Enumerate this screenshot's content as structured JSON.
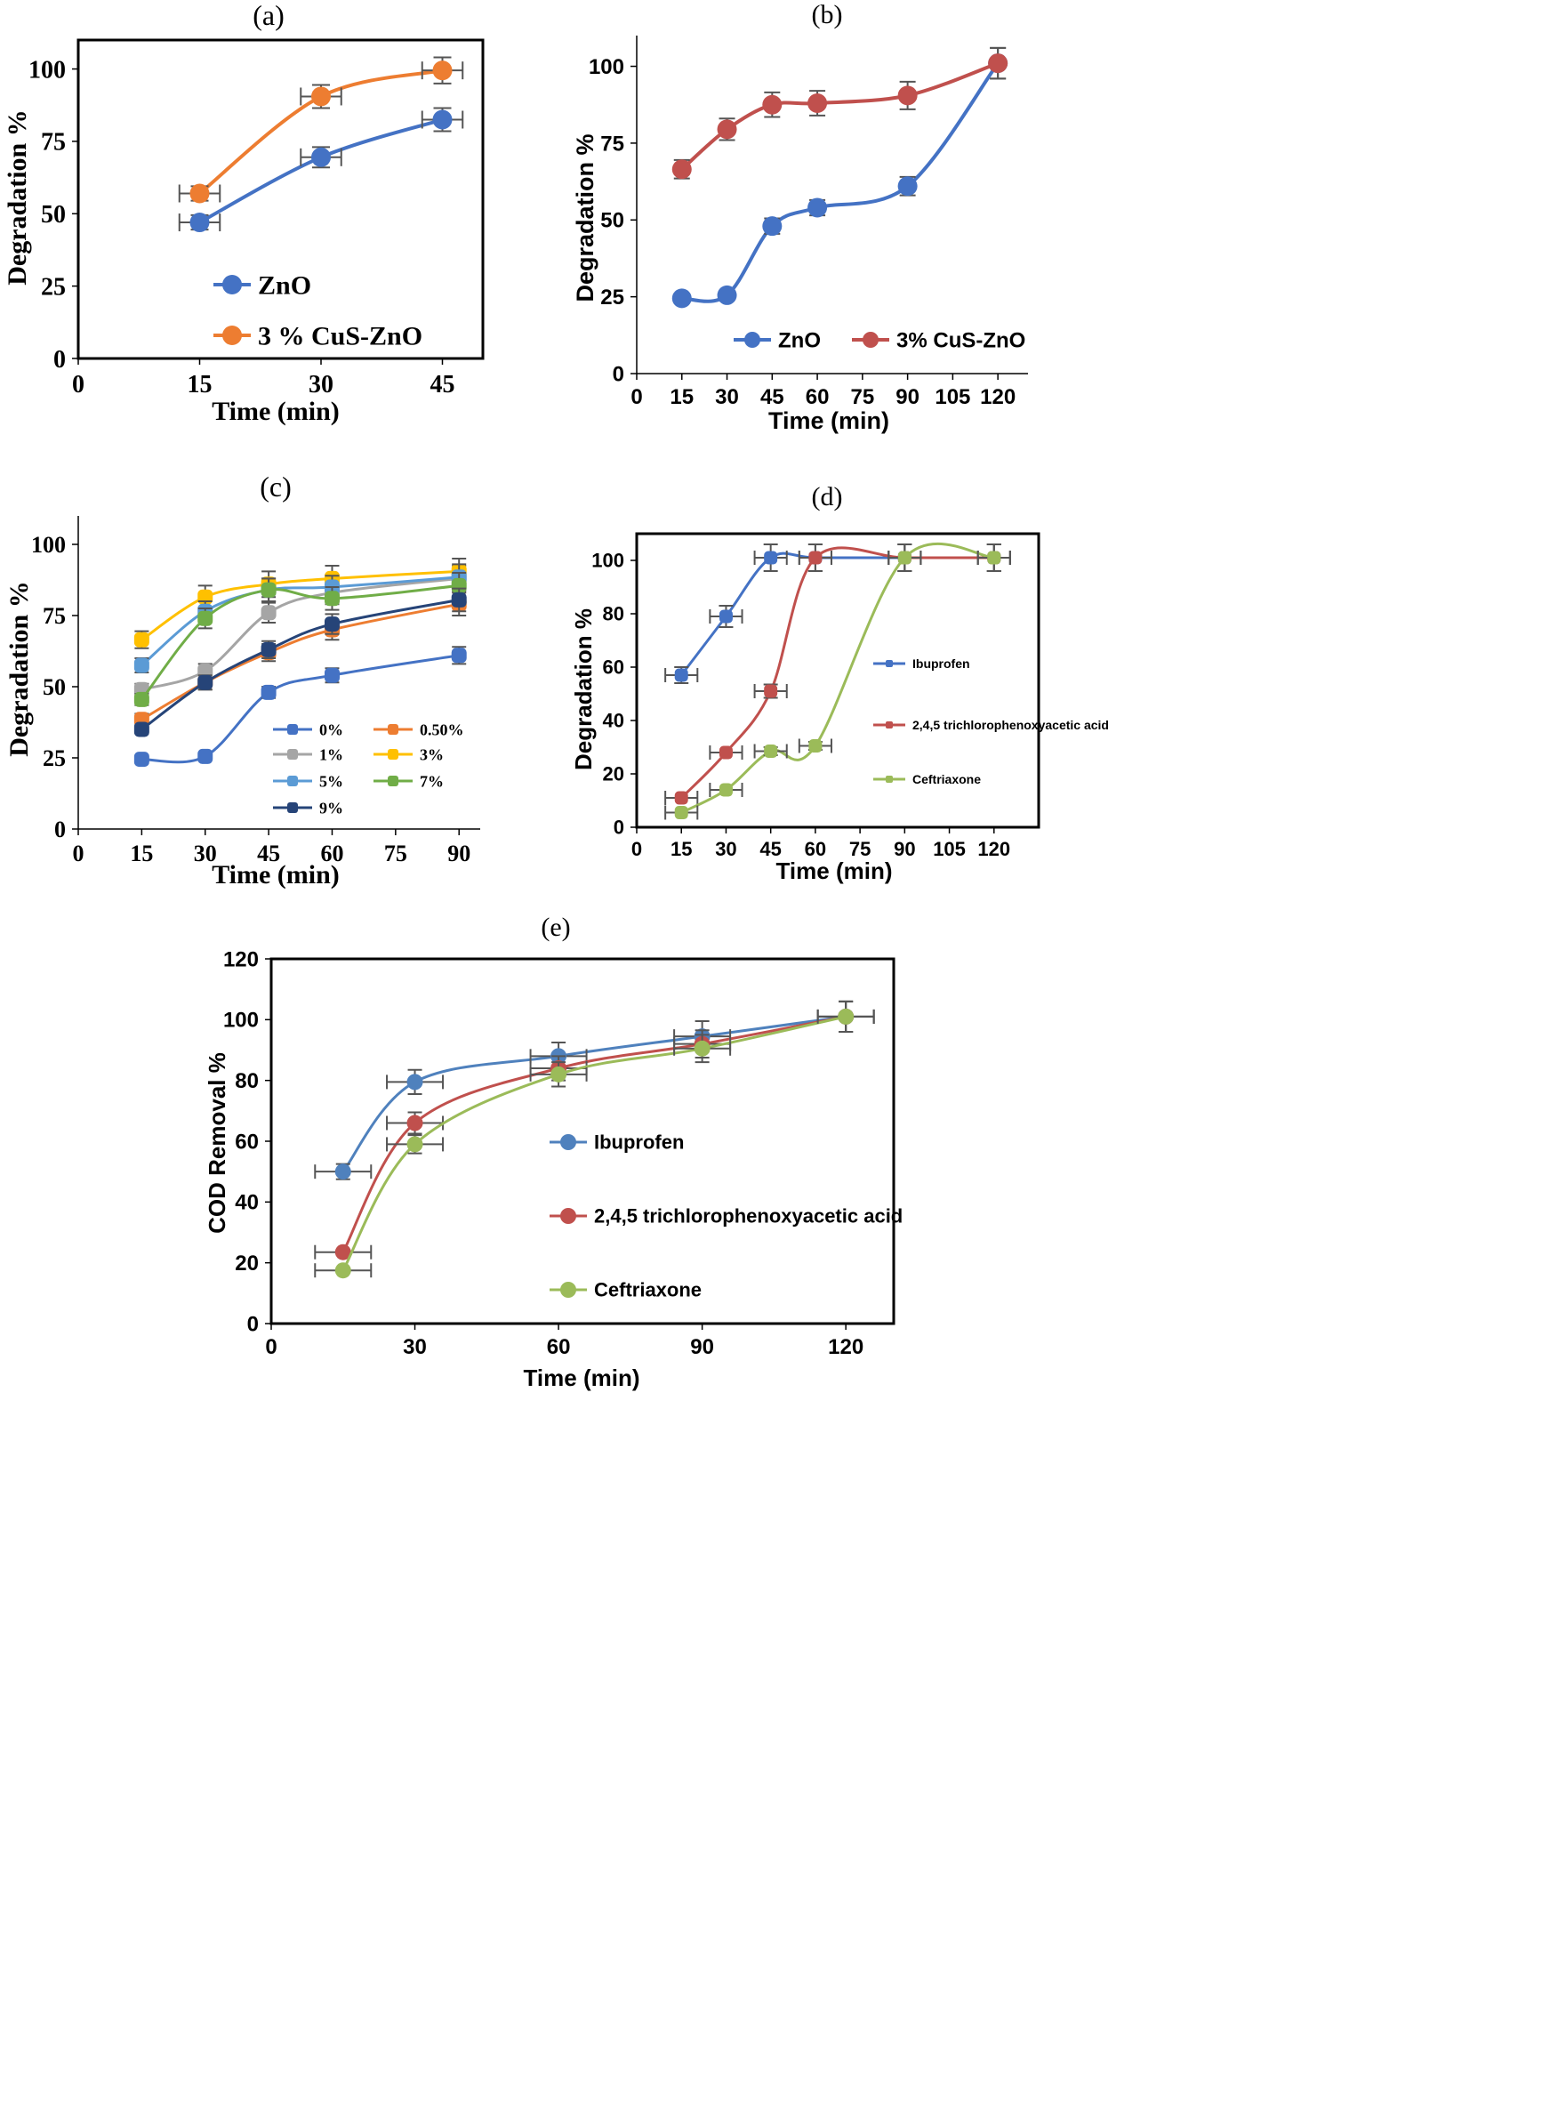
{
  "chart_data": [
    {
      "id": "a",
      "type": "line",
      "panel_label": "(a)",
      "xlabel": "Time (min)",
      "ylabel": "Degradation %",
      "xlim": [
        0,
        50
      ],
      "ylim": [
        0,
        110
      ],
      "xticks": [
        0,
        15,
        30,
        45
      ],
      "yticks": [
        0,
        25,
        50,
        75,
        100
      ],
      "series": [
        {
          "name": "ZnO",
          "color": "#4472C4",
          "x": [
            15,
            30,
            45
          ],
          "y": [
            47,
            69.5,
            82.5
          ],
          "err": [
            2.5,
            3.5,
            4
          ]
        },
        {
          "name": "3 % CuS-ZnO",
          "color": "#ED7D31",
          "x": [
            15,
            30,
            45
          ],
          "y": [
            57,
            90.5,
            99.5
          ],
          "err": [
            2.5,
            4,
            4.5
          ]
        }
      ]
    },
    {
      "id": "b",
      "type": "line",
      "panel_label": "(b)",
      "xlabel": "Time (min)",
      "ylabel": "Degradation %",
      "xlim": [
        0,
        130
      ],
      "ylim": [
        0,
        110
      ],
      "xticks": [
        0,
        15,
        30,
        45,
        60,
        75,
        90,
        105,
        120
      ],
      "yticks": [
        0,
        25,
        50,
        75,
        100
      ],
      "series": [
        {
          "name": "ZnO",
          "color": "#4472C4",
          "x": [
            15,
            30,
            45,
            60,
            90,
            120
          ],
          "y": [
            24.5,
            25.5,
            48,
            54,
            61,
            101
          ],
          "err": [
            0,
            0,
            2.5,
            2.5,
            3,
            5
          ]
        },
        {
          "name": "3% CuS-ZnO",
          "color": "#C0504D",
          "x": [
            15,
            30,
            45,
            60,
            90,
            120
          ],
          "y": [
            66.5,
            79.5,
            87.5,
            88,
            90.5,
            101
          ],
          "err": [
            3,
            3.5,
            4,
            4,
            4.5,
            5
          ]
        }
      ]
    },
    {
      "id": "c",
      "type": "line",
      "panel_label": "(c)",
      "xlabel": "Time (min)",
      "ylabel": "Degradation %",
      "xlim": [
        0,
        95
      ],
      "ylim": [
        0,
        110
      ],
      "xticks": [
        0,
        15,
        30,
        45,
        60,
        75,
        90
      ],
      "yticks": [
        0,
        25,
        50,
        75,
        100
      ],
      "series": [
        {
          "name": "0%",
          "color": "#4472C4",
          "x": [
            15,
            30,
            45,
            60,
            90
          ],
          "y": [
            24.5,
            25.5,
            48,
            54,
            61
          ],
          "err": [
            0,
            0,
            2,
            2.5,
            3
          ]
        },
        {
          "name": "0.50%",
          "color": "#ED7D31",
          "x": [
            15,
            30,
            45,
            60,
            90
          ],
          "y": [
            38.5,
            51.5,
            62,
            70,
            79
          ],
          "err": [
            2,
            2.5,
            3,
            3.5,
            4
          ]
        },
        {
          "name": "1%",
          "color": "#A5A5A5",
          "x": [
            15,
            30,
            45,
            60,
            90
          ],
          "y": [
            49,
            55.5,
            76,
            83,
            88
          ],
          "err": [
            2,
            2.5,
            3.5,
            4,
            4.5
          ]
        },
        {
          "name": "3%",
          "color": "#FFC000",
          "x": [
            15,
            30,
            45,
            60,
            90
          ],
          "y": [
            66.5,
            81.5,
            86,
            88,
            90.5
          ],
          "err": [
            3,
            4,
            4.5,
            4.5,
            4.5
          ]
        },
        {
          "name": "5%",
          "color": "#5B9BD5",
          "x": [
            15,
            30,
            45,
            60,
            90
          ],
          "y": [
            57.5,
            76.5,
            84,
            85,
            88.5
          ],
          "err": [
            2.5,
            3.5,
            4,
            4,
            4.5
          ]
        },
        {
          "name": "7%",
          "color": "#70AD47",
          "x": [
            15,
            30,
            45,
            60,
            90
          ],
          "y": [
            45.5,
            74,
            84,
            81,
            85.5
          ],
          "err": [
            2,
            3.5,
            4,
            4,
            4.5
          ]
        },
        {
          "name": "9%",
          "color": "#264478",
          "x": [
            15,
            30,
            45,
            60,
            90
          ],
          "y": [
            35,
            51.5,
            63,
            72,
            80.5
          ],
          "err": [
            0,
            2.5,
            3,
            3.5,
            4
          ]
        }
      ]
    },
    {
      "id": "d",
      "type": "line",
      "panel_label": "(d)",
      "xlabel": "Time (min)",
      "ylabel": "Degradation %",
      "xlim": [
        0,
        135
      ],
      "ylim": [
        0,
        110
      ],
      "xticks": [
        0,
        15,
        30,
        45,
        60,
        75,
        90,
        105,
        120
      ],
      "yticks": [
        0,
        20,
        40,
        60,
        80,
        100
      ],
      "series": [
        {
          "name": "Ibuprofen",
          "color": "#4472C4",
          "x": [
            15,
            30,
            45,
            60,
            90,
            120
          ],
          "y": [
            57,
            79,
            101,
            101,
            101,
            101
          ],
          "err": [
            3,
            4,
            5,
            5,
            5,
            5
          ]
        },
        {
          "name": "2,4,5 trichlorophenoxyacetic acid",
          "color": "#C0504D",
          "x": [
            15,
            30,
            45,
            60,
            90,
            120
          ],
          "y": [
            11,
            28,
            51,
            101,
            101,
            101
          ],
          "err": [
            0,
            0,
            2.5,
            5,
            5,
            5
          ]
        },
        {
          "name": "Ceftriaxone",
          "color": "#9BBB59",
          "x": [
            15,
            30,
            45,
            60,
            90,
            120
          ],
          "y": [
            5.5,
            14,
            28.5,
            30.5,
            101,
            101
          ],
          "err": [
            0,
            0,
            1.5,
            1.5,
            5,
            5
          ]
        }
      ]
    },
    {
      "id": "e",
      "type": "line",
      "panel_label": "(e)",
      "xlabel": "Time (min)",
      "ylabel": "COD Removal  %",
      "xlim": [
        0,
        130
      ],
      "ylim": [
        0,
        120
      ],
      "xticks": [
        0,
        30,
        60,
        90,
        120
      ],
      "yticks": [
        0,
        20,
        40,
        60,
        80,
        100,
        120
      ],
      "series": [
        {
          "name": "Ibuprofen",
          "color": "#4F81BD",
          "x": [
            15,
            30,
            60,
            90,
            120
          ],
          "y": [
            50,
            79.5,
            88,
            94.5,
            101
          ],
          "err": [
            2.5,
            4,
            4.5,
            5,
            5
          ]
        },
        {
          "name": "2,4,5 trichlorophenoxyacetic acid",
          "color": "#C0504D",
          "x": [
            15,
            30,
            60,
            90,
            120
          ],
          "y": [
            23.5,
            66,
            84,
            92,
            101
          ],
          "err": [
            0,
            3.5,
            4,
            4.5,
            5
          ]
        },
        {
          "name": "Ceftriaxone",
          "color": "#9BBB59",
          "x": [
            15,
            30,
            60,
            90,
            120
          ],
          "y": [
            17.5,
            59,
            82,
            90.5,
            101
          ],
          "err": [
            0,
            3,
            4,
            4.5,
            5
          ]
        }
      ]
    }
  ]
}
